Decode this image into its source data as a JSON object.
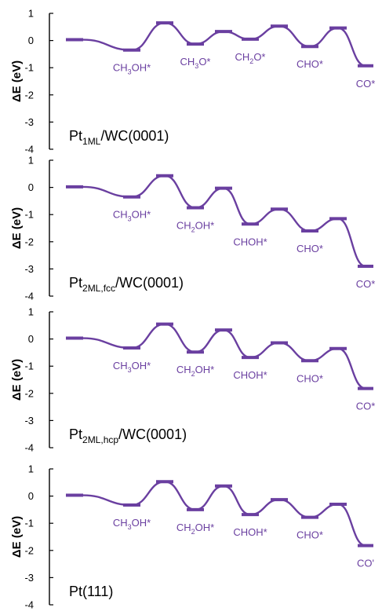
{
  "figure": {
    "color_accent": "#6a3fa0",
    "color_axis": "#000000"
  },
  "chart_data": [
    {
      "type": "line",
      "ylabel": "ΔE (eV)",
      "ylim": [
        -4,
        1
      ],
      "yticks": [
        "1",
        "0",
        "-1",
        "-2",
        "-3",
        "-4"
      ],
      "surface": {
        "main": "Pt",
        "sub": "1ML",
        "suffix": "/WC(0001)"
      },
      "levels": [
        0.03,
        -0.35,
        0.65,
        -0.13,
        0.33,
        0.05,
        0.53,
        -0.22,
        0.46,
        -0.93
      ],
      "kinds": [
        "state",
        "state",
        "ts",
        "state",
        "ts",
        "state",
        "ts",
        "state",
        "ts",
        "state"
      ],
      "labels": [
        {
          "i": 1,
          "main": "CH",
          "sub": "3",
          "suffix": "OH*"
        },
        {
          "i": 3,
          "main": "CH",
          "sub": "3",
          "suffix": "O*"
        },
        {
          "i": 5,
          "main": "CH",
          "sub": "2",
          "suffix": "O*"
        },
        {
          "i": 7,
          "main": "CHO*",
          "sub": "",
          "suffix": ""
        },
        {
          "i": 9,
          "main": "CO*",
          "sub": "",
          "suffix": ""
        }
      ]
    },
    {
      "type": "line",
      "ylabel": "ΔE (eV)",
      "ylim": [
        -4,
        1
      ],
      "yticks": [
        "1",
        "0",
        "-1",
        "-2",
        "-3",
        "-4"
      ],
      "surface": {
        "main": "Pt",
        "sub": "2ML,fcc",
        "suffix": "/WC(0001)"
      },
      "levels": [
        0.02,
        -0.35,
        0.43,
        -0.75,
        -0.03,
        -1.35,
        -0.8,
        -1.6,
        -1.15,
        -2.9
      ],
      "kinds": [
        "state",
        "state",
        "ts",
        "state",
        "ts",
        "state",
        "ts",
        "state",
        "ts",
        "state"
      ],
      "labels": [
        {
          "i": 1,
          "main": "CH",
          "sub": "3",
          "suffix": "OH*"
        },
        {
          "i": 3,
          "main": "CH",
          "sub": "2",
          "suffix": "OH*"
        },
        {
          "i": 5,
          "main": "CHOH*",
          "sub": "",
          "suffix": ""
        },
        {
          "i": 7,
          "main": "CHO*",
          "sub": "",
          "suffix": ""
        },
        {
          "i": 9,
          "main": "CO*",
          "sub": "",
          "suffix": ""
        }
      ]
    },
    {
      "type": "line",
      "ylabel": "ΔE (eV)",
      "ylim": [
        -4,
        1
      ],
      "yticks": [
        "1",
        "0",
        "-1",
        "-2",
        "-3",
        "-4"
      ],
      "surface": {
        "main": "Pt",
        "sub": "2ML,hcp",
        "suffix": "/WC(0001)"
      },
      "levels": [
        0.03,
        -0.33,
        0.55,
        -0.48,
        0.33,
        -0.68,
        -0.14,
        -0.8,
        -0.35,
        -1.82
      ],
      "kinds": [
        "state",
        "state",
        "ts",
        "state",
        "ts",
        "state",
        "ts",
        "state",
        "ts",
        "state"
      ],
      "labels": [
        {
          "i": 1,
          "main": "CH",
          "sub": "3",
          "suffix": "OH*"
        },
        {
          "i": 3,
          "main": "CH",
          "sub": "2",
          "suffix": "OH*"
        },
        {
          "i": 5,
          "main": "CHOH*",
          "sub": "",
          "suffix": ""
        },
        {
          "i": 7,
          "main": "CHO*",
          "sub": "",
          "suffix": ""
        },
        {
          "i": 9,
          "main": "CO*",
          "sub": "",
          "suffix": ""
        }
      ]
    },
    {
      "type": "line",
      "ylabel": "ΔE (eV)",
      "ylim": [
        -4,
        1
      ],
      "yticks": [
        "1",
        "0",
        "-1",
        "-2",
        "-3",
        "-4"
      ],
      "surface": {
        "main": "Pt(111)",
        "sub": "",
        "suffix": ""
      },
      "levels": [
        0.03,
        -0.33,
        0.53,
        -0.5,
        0.37,
        -0.68,
        -0.13,
        -0.78,
        -0.3,
        -1.82
      ],
      "kinds": [
        "state",
        "state",
        "ts",
        "state",
        "ts",
        "state",
        "ts",
        "state",
        "ts",
        "state"
      ],
      "labels": [
        {
          "i": 1,
          "main": "CH",
          "sub": "3",
          "suffix": "OH*"
        },
        {
          "i": 3,
          "main": "CH",
          "sub": "2",
          "suffix": "OH*"
        },
        {
          "i": 5,
          "main": "CHOH*",
          "sub": "",
          "suffix": ""
        },
        {
          "i": 7,
          "main": "CHO*",
          "sub": "",
          "suffix": ""
        },
        {
          "i": 9,
          "main": "CO'",
          "sub": "",
          "suffix": ""
        }
      ]
    }
  ]
}
